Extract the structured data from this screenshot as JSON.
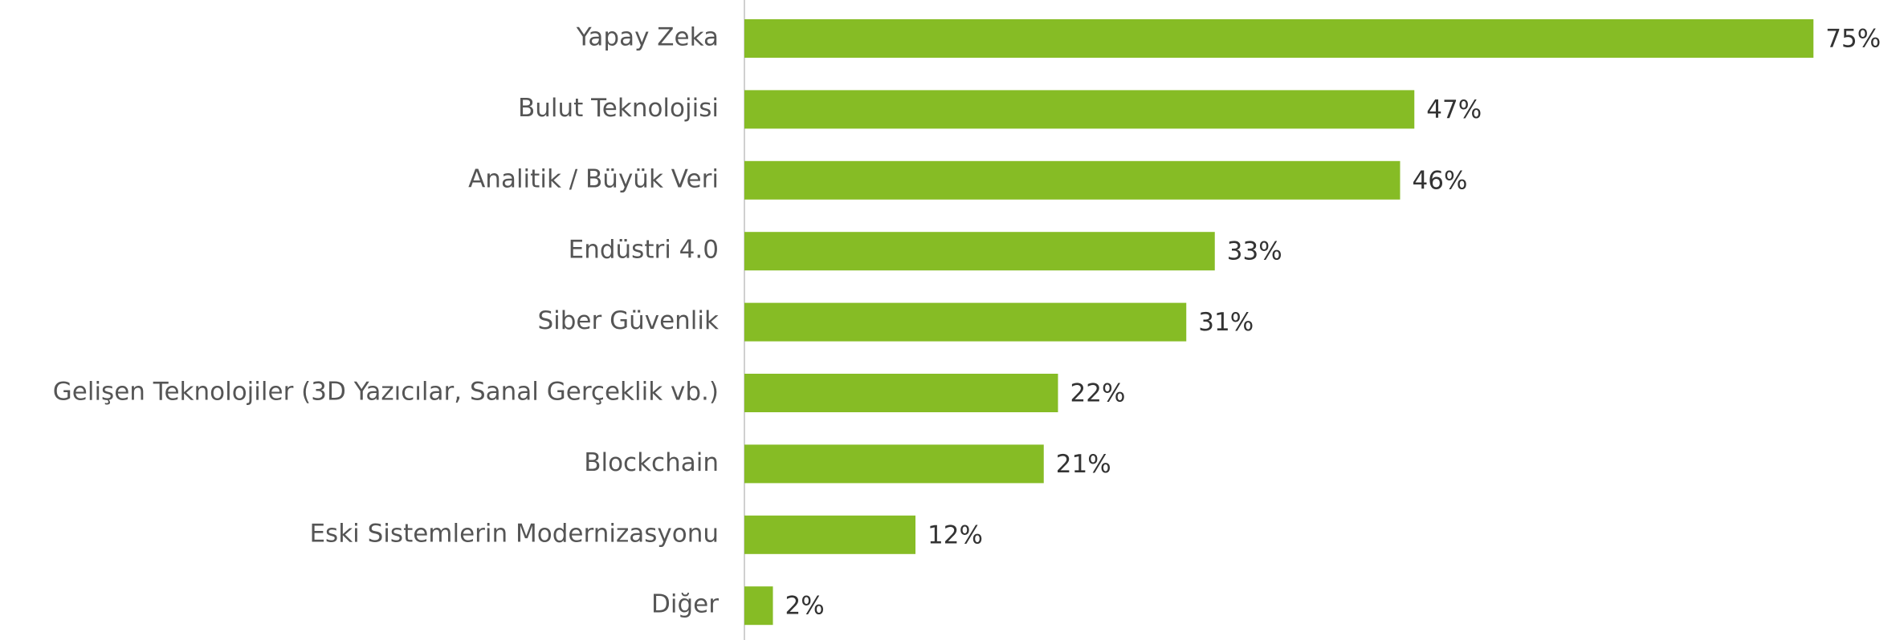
{
  "chart_data": {
    "type": "bar",
    "orientation": "horizontal",
    "categories": [
      "Yapay Zeka",
      "Bulut Teknolojisi",
      "Analitik / Büyük Veri",
      "Endüstri 4.0",
      "Siber Güvenlik",
      "Gelişen Teknolojiler (3D Yazıcılar, Sanal Gerçeklik vb.)",
      "Blockchain",
      "Eski Sistemlerin Modernizasyonu",
      "Diğer"
    ],
    "values": [
      75,
      47,
      46,
      33,
      31,
      22,
      21,
      12,
      2
    ],
    "value_labels": [
      "75%",
      "47%",
      "46%",
      "33%",
      "31%",
      "22%",
      "21%",
      "12%",
      "2%"
    ],
    "color": "#86bc25"
  }
}
